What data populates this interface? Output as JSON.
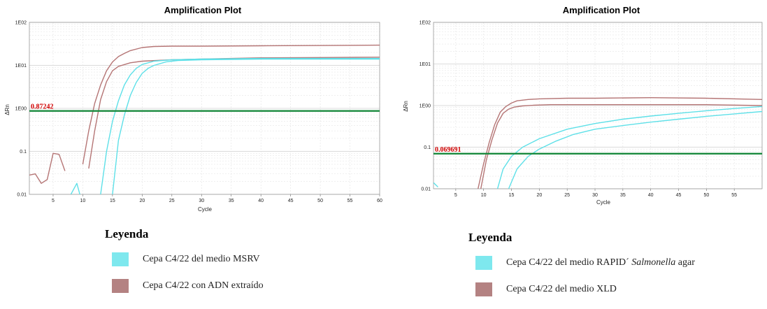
{
  "chart_data": [
    {
      "type": "line",
      "title": "Amplification Plot",
      "xlabel": "Cycle",
      "ylabel": "ΔRn",
      "yscale": "log",
      "xlim": [
        1,
        60
      ],
      "ylim": [
        0.01,
        100
      ],
      "x_ticks": [
        "5",
        "10",
        "15",
        "20",
        "25",
        "30",
        "35",
        "40",
        "45",
        "50",
        "55",
        "60"
      ],
      "x_tick_values": [
        5,
        10,
        15,
        20,
        25,
        30,
        35,
        40,
        45,
        50,
        55,
        60
      ],
      "y_ticks": [
        "1E02",
        "1E01",
        "1E00",
        "0.1",
        "0.01"
      ],
      "y_tick_values": [
        100,
        10,
        1,
        0.1,
        0.01
      ],
      "threshold": {
        "label": "0.87242",
        "value": 0.87242,
        "color": "#1a8a3e"
      },
      "series": [
        {
          "color": "#b57575",
          "x": [
            1,
            2,
            3,
            4,
            5,
            6,
            7
          ],
          "y": [
            0.028,
            0.03,
            0.018,
            0.022,
            0.09,
            0.085,
            0.035
          ]
        },
        {
          "color": "#b57575",
          "x": [
            10,
            11,
            12,
            13,
            14,
            15,
            16,
            17,
            18,
            20,
            22,
            25,
            30,
            40,
            50,
            60
          ],
          "y": [
            0.05,
            0.3,
            1.3,
            3.5,
            7.5,
            12,
            16,
            19,
            22,
            26,
            27.5,
            28,
            28,
            28.5,
            29,
            29.5
          ]
        },
        {
          "color": "#b57575",
          "x": [
            11,
            12,
            13,
            14,
            15,
            16,
            18,
            20,
            25,
            30,
            40,
            50,
            60
          ],
          "y": [
            0.04,
            0.3,
            1.6,
            4.2,
            7.5,
            9.5,
            11.5,
            12.5,
            13.5,
            14,
            15,
            15.2,
            15.5
          ]
        },
        {
          "color": "#5ee0e8",
          "x": [
            8,
            9,
            9.5
          ],
          "y": [
            0.01,
            0.018,
            0.01
          ]
        },
        {
          "color": "#5ee0e8",
          "x": [
            13,
            14,
            15,
            16,
            17,
            18,
            19,
            20,
            22,
            25,
            30,
            40,
            50,
            60
          ],
          "y": [
            0.01,
            0.1,
            0.5,
            1.5,
            3.5,
            6,
            8.5,
            10.5,
            12.5,
            13.5,
            14,
            14.5,
            14.5,
            14.5
          ]
        },
        {
          "color": "#5ee0e8",
          "x": [
            15,
            16,
            17,
            18,
            19,
            20,
            21,
            22,
            24,
            26,
            30,
            40,
            50,
            60
          ],
          "y": [
            0.01,
            0.18,
            0.7,
            2,
            4,
            6.5,
            8.5,
            10,
            12,
            13,
            13.5,
            14,
            14,
            14
          ]
        }
      ]
    },
    {
      "type": "line",
      "title": "Amplification Plot",
      "xlabel": "Cycle",
      "ylabel": "ΔRn",
      "yscale": "log",
      "xlim": [
        1,
        60
      ],
      "ylim": [
        0.01,
        100
      ],
      "x_ticks": [
        "5",
        "10",
        "15",
        "20",
        "25",
        "30",
        "35",
        "40",
        "45",
        "50",
        "55"
      ],
      "x_tick_values": [
        5,
        10,
        15,
        20,
        25,
        30,
        35,
        40,
        45,
        50,
        55
      ],
      "y_ticks": [
        "1E02",
        "1E01",
        "1E00",
        "0.1",
        "0.01"
      ],
      "y_tick_values": [
        100,
        10,
        1,
        0.1,
        0.01
      ],
      "threshold": {
        "label": "0.069691",
        "value": 0.069691,
        "color": "#1a8a3e"
      },
      "series": [
        {
          "color": "#5ee0e8",
          "x": [
            1,
            1.8
          ],
          "y": [
            0.014,
            0.011
          ]
        },
        {
          "color": "#b57575",
          "x": [
            9,
            10,
            11,
            12,
            13,
            14,
            15,
            16,
            18,
            20,
            25,
            30,
            40,
            50,
            60
          ],
          "y": [
            0.01,
            0.04,
            0.13,
            0.35,
            0.7,
            0.95,
            1.15,
            1.3,
            1.4,
            1.45,
            1.5,
            1.5,
            1.55,
            1.5,
            1.4
          ]
        },
        {
          "color": "#b57575",
          "x": [
            9.5,
            10.5,
            11.5,
            12.5,
            13.5,
            14.5,
            15.5,
            17,
            19,
            22,
            25,
            30,
            40,
            50,
            60
          ],
          "y": [
            0.01,
            0.05,
            0.15,
            0.38,
            0.65,
            0.82,
            0.92,
            0.98,
            1.02,
            1.05,
            1.05,
            1.05,
            1.05,
            1.05,
            1.0
          ]
        },
        {
          "color": "#5ee0e8",
          "x": [
            12.5,
            13.5,
            15,
            17,
            20,
            25,
            30,
            35,
            40,
            45,
            50,
            55,
            60
          ],
          "y": [
            0.01,
            0.03,
            0.06,
            0.1,
            0.16,
            0.27,
            0.37,
            0.47,
            0.56,
            0.65,
            0.75,
            0.85,
            0.95
          ]
        },
        {
          "color": "#5ee0e8",
          "x": [
            14.5,
            16,
            18,
            20,
            23,
            26,
            30,
            35,
            40,
            45,
            50,
            55,
            60
          ],
          "y": [
            0.01,
            0.03,
            0.06,
            0.09,
            0.14,
            0.2,
            0.27,
            0.33,
            0.4,
            0.47,
            0.55,
            0.63,
            0.72
          ]
        }
      ]
    }
  ],
  "legends": [
    {
      "title": "Leyenda",
      "items": [
        {
          "swatch": "#7ee8ee",
          "label": "Cepa C4/22 del medio MSRV"
        },
        {
          "swatch": "#b48282",
          "label": "Cepa C4/22 con ADN extraído"
        }
      ]
    },
    {
      "title": "Leyenda",
      "items": [
        {
          "swatch": "#7ee8ee",
          "label_prefix": "Cepa C4/22 del medio RAPID´ ",
          "label_italic": "Salmonella",
          "label_suffix": " agar"
        },
        {
          "swatch": "#b48282",
          "label": "Cepa C4/22 del medio XLD"
        }
      ]
    }
  ]
}
